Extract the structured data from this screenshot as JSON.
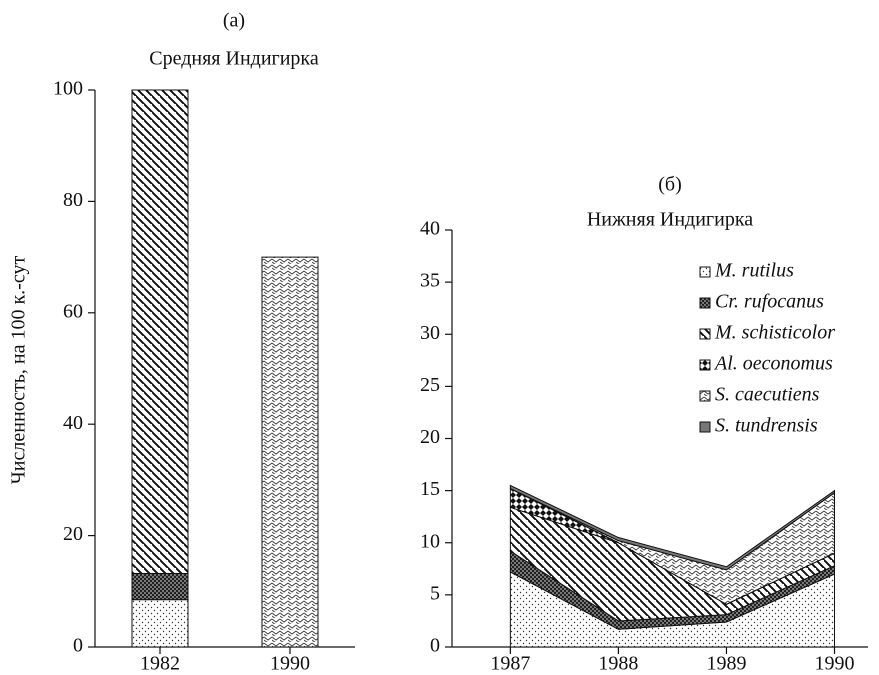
{
  "chart_data": [
    {
      "type": "stacked_bar",
      "title": "(a)",
      "subtitle": "Средняя Индигирка",
      "y_label": "Численность, на 100 к.-сут",
      "categories": [
        "1982",
        "1990"
      ],
      "ylim": [
        0,
        100
      ],
      "yticks": [
        0,
        20,
        40,
        60,
        80,
        100
      ],
      "series": [
        {
          "pattern": "dots",
          "values": [
            8.5,
            0
          ]
        },
        {
          "pattern": "cross",
          "values": [
            4.7,
            0
          ]
        },
        {
          "pattern": "diag",
          "values": [
            86.8,
            0
          ]
        },
        {
          "pattern": "zigzag",
          "values": [
            0,
            70
          ]
        }
      ]
    },
    {
      "type": "stacked_area",
      "title": "(б)",
      "subtitle": "Нижняя Индигирка",
      "x": [
        1987,
        1988,
        1989,
        1990
      ],
      "xlim": [
        1986.46,
        1990.31
      ],
      "xticks": [
        1987,
        1988,
        1989,
        1990
      ],
      "ylim": [
        0,
        40
      ],
      "yticks": [
        0,
        5,
        10,
        15,
        20,
        25,
        30,
        35,
        40
      ],
      "legend": "upper right",
      "series": [
        {
          "name": "M. rutilus",
          "pattern": "dots",
          "values": [
            7.2,
            1.7,
            2.4,
            7.0
          ]
        },
        {
          "name": "Cr. rufocanus",
          "pattern": "cross",
          "values": [
            2.0,
            0.8,
            0.7,
            0.8
          ]
        },
        {
          "name": "M. schisticolor",
          "pattern": "diag",
          "values": [
            4.2,
            7.5,
            1.0,
            1.2
          ]
        },
        {
          "name": "Al. oeconomus",
          "pattern": "diamond",
          "values": [
            1.8,
            0,
            0,
            0
          ]
        },
        {
          "name": "S. caecutiens",
          "pattern": "zigzag",
          "values": [
            0,
            0.2,
            3.3,
            5.8
          ]
        },
        {
          "name": "S. tundrensis",
          "pattern": "solid",
          "values": [
            0.3,
            0.3,
            0.3,
            0.2
          ]
        }
      ]
    }
  ]
}
